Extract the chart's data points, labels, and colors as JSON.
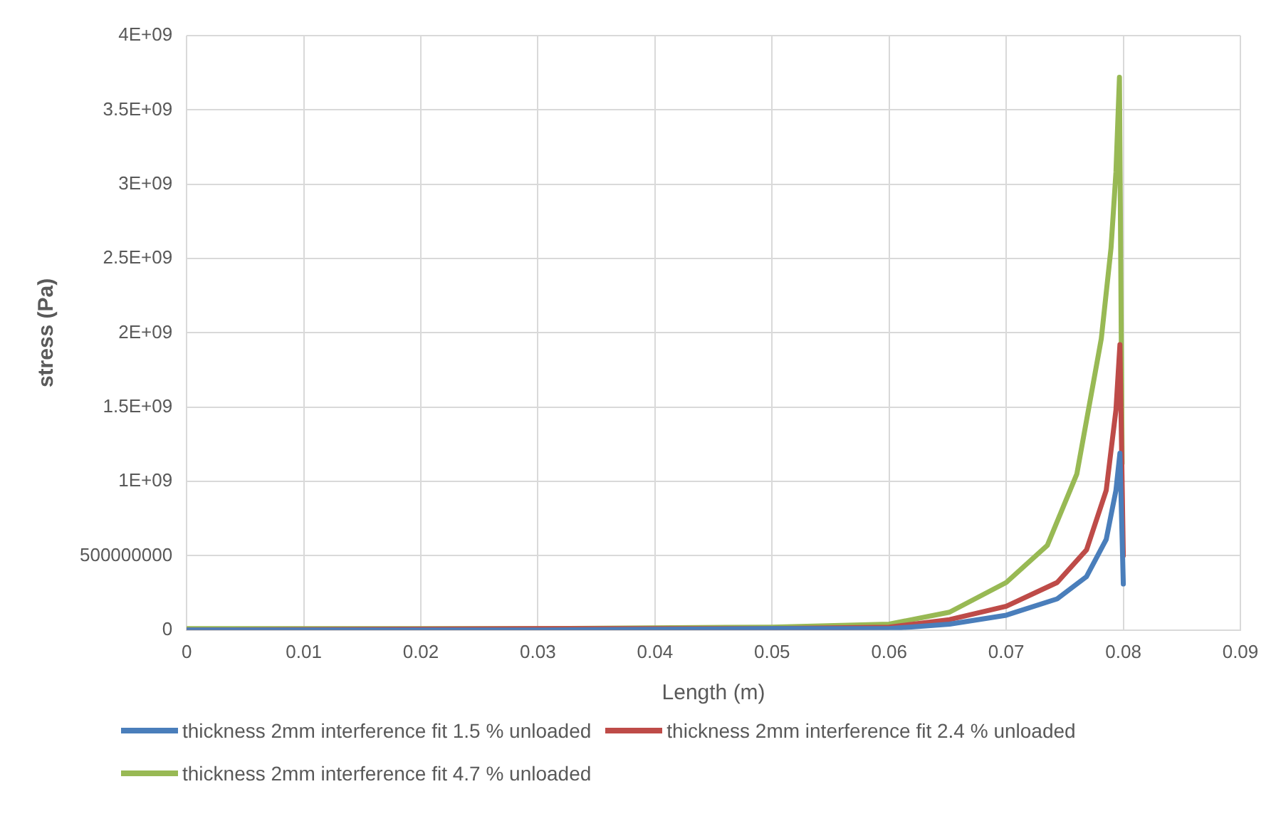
{
  "chart_data": {
    "type": "line",
    "xlabel": "Length (m)",
    "ylabel": "stress (Pa)",
    "xlim": [
      0,
      0.09
    ],
    "xticks": [
      0,
      0.01,
      0.02,
      0.03,
      0.04,
      0.05,
      0.06,
      0.07,
      0.08,
      0.09
    ],
    "ylim": [
      0,
      4000000000
    ],
    "yticks": [
      0,
      {
        "value": 500000000,
        "label": "500000000"
      },
      {
        "value": 1000000000,
        "label": "1E+09"
      },
      {
        "value": 1500000000,
        "label": "1.5E+09"
      },
      {
        "value": 2000000000,
        "label": "2E+09"
      },
      {
        "value": 2500000000,
        "label": "2.5E+09"
      },
      {
        "value": 3000000000,
        "label": "3E+09"
      },
      {
        "value": 3500000000,
        "label": "3.5E+09"
      },
      {
        "value": 4000000000,
        "label": "4E+09"
      }
    ],
    "grid": true,
    "legend": "bottom",
    "marker": "none",
    "line_style": "solid",
    "series": [
      {
        "name": "thickness 2mm interference fit 1.5 % unloaded",
        "color": "#4a7ebb",
        "x": [
          0,
          0.03,
          0.05,
          0.06,
          0.06515,
          0.07,
          0.07435,
          0.07686,
          0.07854,
          0.07937,
          0.07971,
          0.08
        ],
        "values": [
          0,
          0,
          10000000,
          10000000,
          40000000,
          100000000,
          210000000,
          360000000,
          610000000,
          940000000,
          1190000000,
          310000000
        ]
      },
      {
        "name": "thickness 2mm interference fit 2.4 % unloaded",
        "color": "#be4b48",
        "x": [
          0,
          0.03,
          0.05,
          0.06,
          0.06515,
          0.07,
          0.07435,
          0.07686,
          0.07854,
          0.07937,
          0.07971,
          0.08
        ],
        "values": [
          0,
          10000000,
          10000000,
          20000000,
          70000000,
          160000000,
          320000000,
          540000000,
          940000000,
          1480000000,
          1920000000,
          500000000
        ]
      },
      {
        "name": "thickness 2mm interference fit 4.7 % unloaded",
        "color": "#98b954",
        "x": [
          0,
          0.03,
          0.05,
          0.06,
          0.06515,
          0.07,
          0.07351,
          0.07603,
          0.07812,
          0.07895,
          0.07937,
          0.07967,
          0.0799
        ],
        "values": [
          10000000,
          10000000,
          20000000,
          40000000,
          120000000,
          320000000,
          570000000,
          1050000000,
          1960000000,
          2570000000,
          3080000000,
          3720000000,
          1120000000
        ]
      }
    ]
  }
}
